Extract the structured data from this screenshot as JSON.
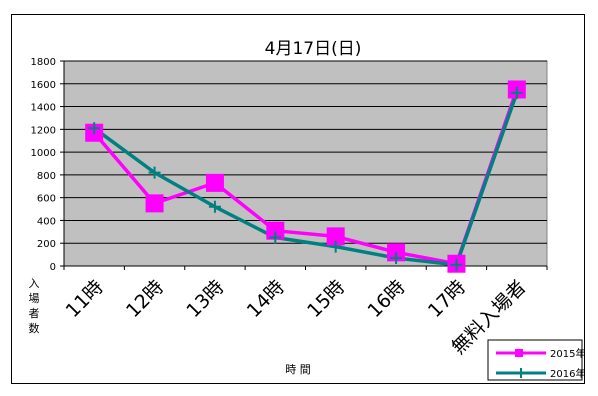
{
  "chart_data": {
    "type": "line",
    "title": "4月17日(日)",
    "xlabel": "時 間",
    "ylabel": [
      "入",
      "場",
      "者",
      "数"
    ],
    "categories": [
      "11時",
      "12時",
      "13時",
      "14時",
      "15時",
      "16時",
      "17時",
      "無料入場者"
    ],
    "ylim": [
      0,
      1800
    ],
    "yticks": [
      "0",
      "200",
      "400",
      "600",
      "800",
      "1000",
      "1200",
      "1400",
      "1600",
      "1800"
    ],
    "grid": true,
    "legend_position": "bottom-right",
    "series": [
      {
        "name": "2015年",
        "color": "#ff00ff",
        "marker": "square",
        "values": [
          1170,
          550,
          730,
          310,
          260,
          120,
          20,
          1550
        ]
      },
      {
        "name": "2016年",
        "color": "#008080",
        "marker": "plus",
        "values": [
          1210,
          820,
          520,
          250,
          170,
          70,
          10,
          1520
        ]
      }
    ]
  },
  "colors": {
    "plot_background": "#c0c0c0",
    "gridline": "#000000"
  }
}
